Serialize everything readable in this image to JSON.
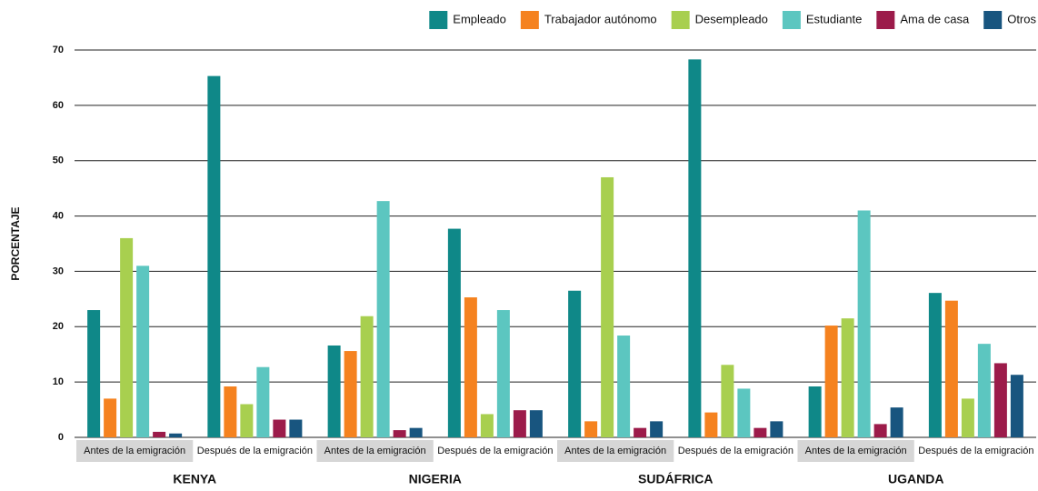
{
  "chart_data": {
    "type": "bar",
    "ylabel": "PORCENTAJE",
    "categories": [
      "Antes de la emigración",
      "Después de la emigración",
      "Antes de la emigración",
      "Después de la emigración",
      "Antes de la emigración",
      "Después de la emigración",
      "Antes de la emigración",
      "Después de la emigración"
    ],
    "groups": [
      "KENYA",
      "NIGERIA",
      "SUDÁFRICA",
      "UGANDA"
    ],
    "series": [
      {
        "name": "Empleado",
        "color": "#0f8888",
        "values": [
          23,
          65.3,
          16.6,
          37.7,
          26.5,
          68.3,
          9.2,
          26.1
        ]
      },
      {
        "name": "Trabajador autónomo",
        "color": "#f5821f",
        "values": [
          7,
          9.2,
          15.6,
          25.3,
          2.9,
          4.5,
          20.2,
          24.7
        ]
      },
      {
        "name": "Desempleado",
        "color": "#a8cf4f",
        "values": [
          36,
          6,
          21.9,
          4.2,
          47,
          13.1,
          21.5,
          7
        ]
      },
      {
        "name": "Estudiante",
        "color": "#5cc6c0",
        "values": [
          31,
          12.7,
          42.7,
          23,
          18.4,
          8.8,
          41,
          16.9
        ]
      },
      {
        "name": "Ama de casa",
        "color": "#9c1b4a",
        "values": [
          1,
          3.2,
          1.3,
          4.9,
          1.7,
          1.7,
          2.4,
          13.4
        ]
      },
      {
        "name": "Otros",
        "color": "#18557f",
        "values": [
          0.7,
          3.2,
          1.7,
          4.9,
          2.9,
          2.9,
          5.4,
          11.3
        ]
      }
    ],
    "ylim": [
      0,
      70
    ],
    "yticks": [
      0,
      10,
      20,
      30,
      40,
      50,
      60,
      70
    ],
    "grid": true
  }
}
